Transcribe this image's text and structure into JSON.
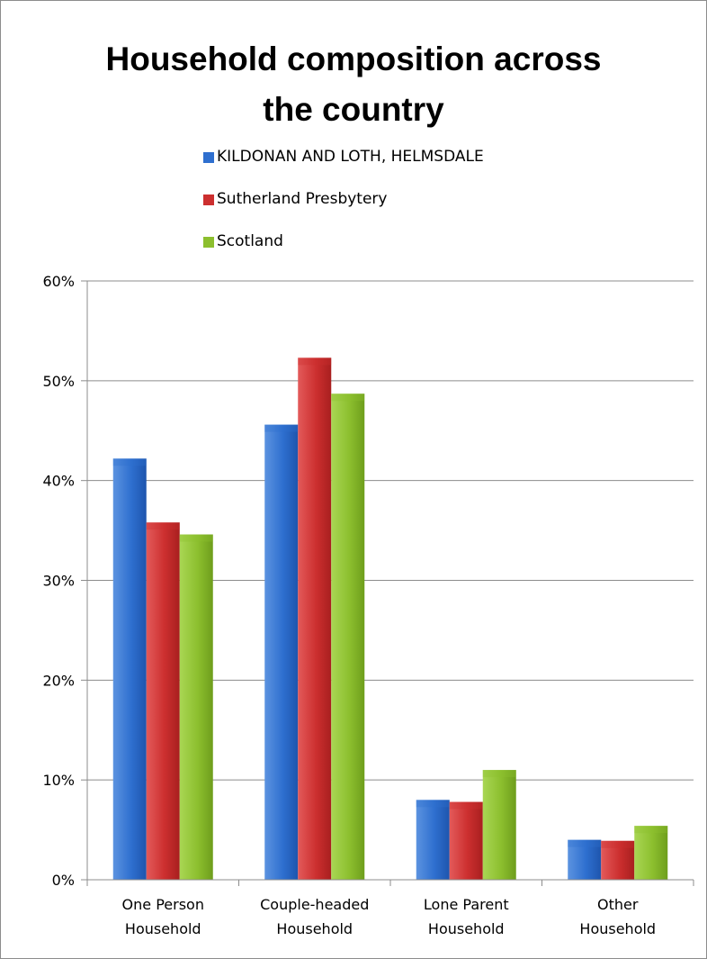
{
  "chart_data": {
    "type": "bar",
    "title_lines": [
      "Household composition across",
      "the country"
    ],
    "categories": [
      [
        "One Person",
        "Household"
      ],
      [
        "Couple-headed",
        "Household"
      ],
      [
        "Lone Parent",
        "Household"
      ],
      [
        "Other",
        "Household"
      ]
    ],
    "series": [
      {
        "name": "KILDONAN AND LOTH, HELMSDALE",
        "color": "#2e6fcf",
        "values": [
          42.2,
          45.6,
          8.0,
          4.0
        ]
      },
      {
        "name": "Sutherland Presbytery",
        "color": "#cc2f2f",
        "values": [
          35.8,
          52.3,
          7.8,
          3.9
        ]
      },
      {
        "name": "Scotland",
        "color": "#8cbf2e",
        "values": [
          34.6,
          48.7,
          11.0,
          5.4
        ]
      }
    ],
    "y_ticks": [
      "0%",
      "10%",
      "20%",
      "30%",
      "40%",
      "50%",
      "60%"
    ],
    "ylim": [
      0,
      60
    ],
    "grid": true,
    "legend_position": "top"
  }
}
